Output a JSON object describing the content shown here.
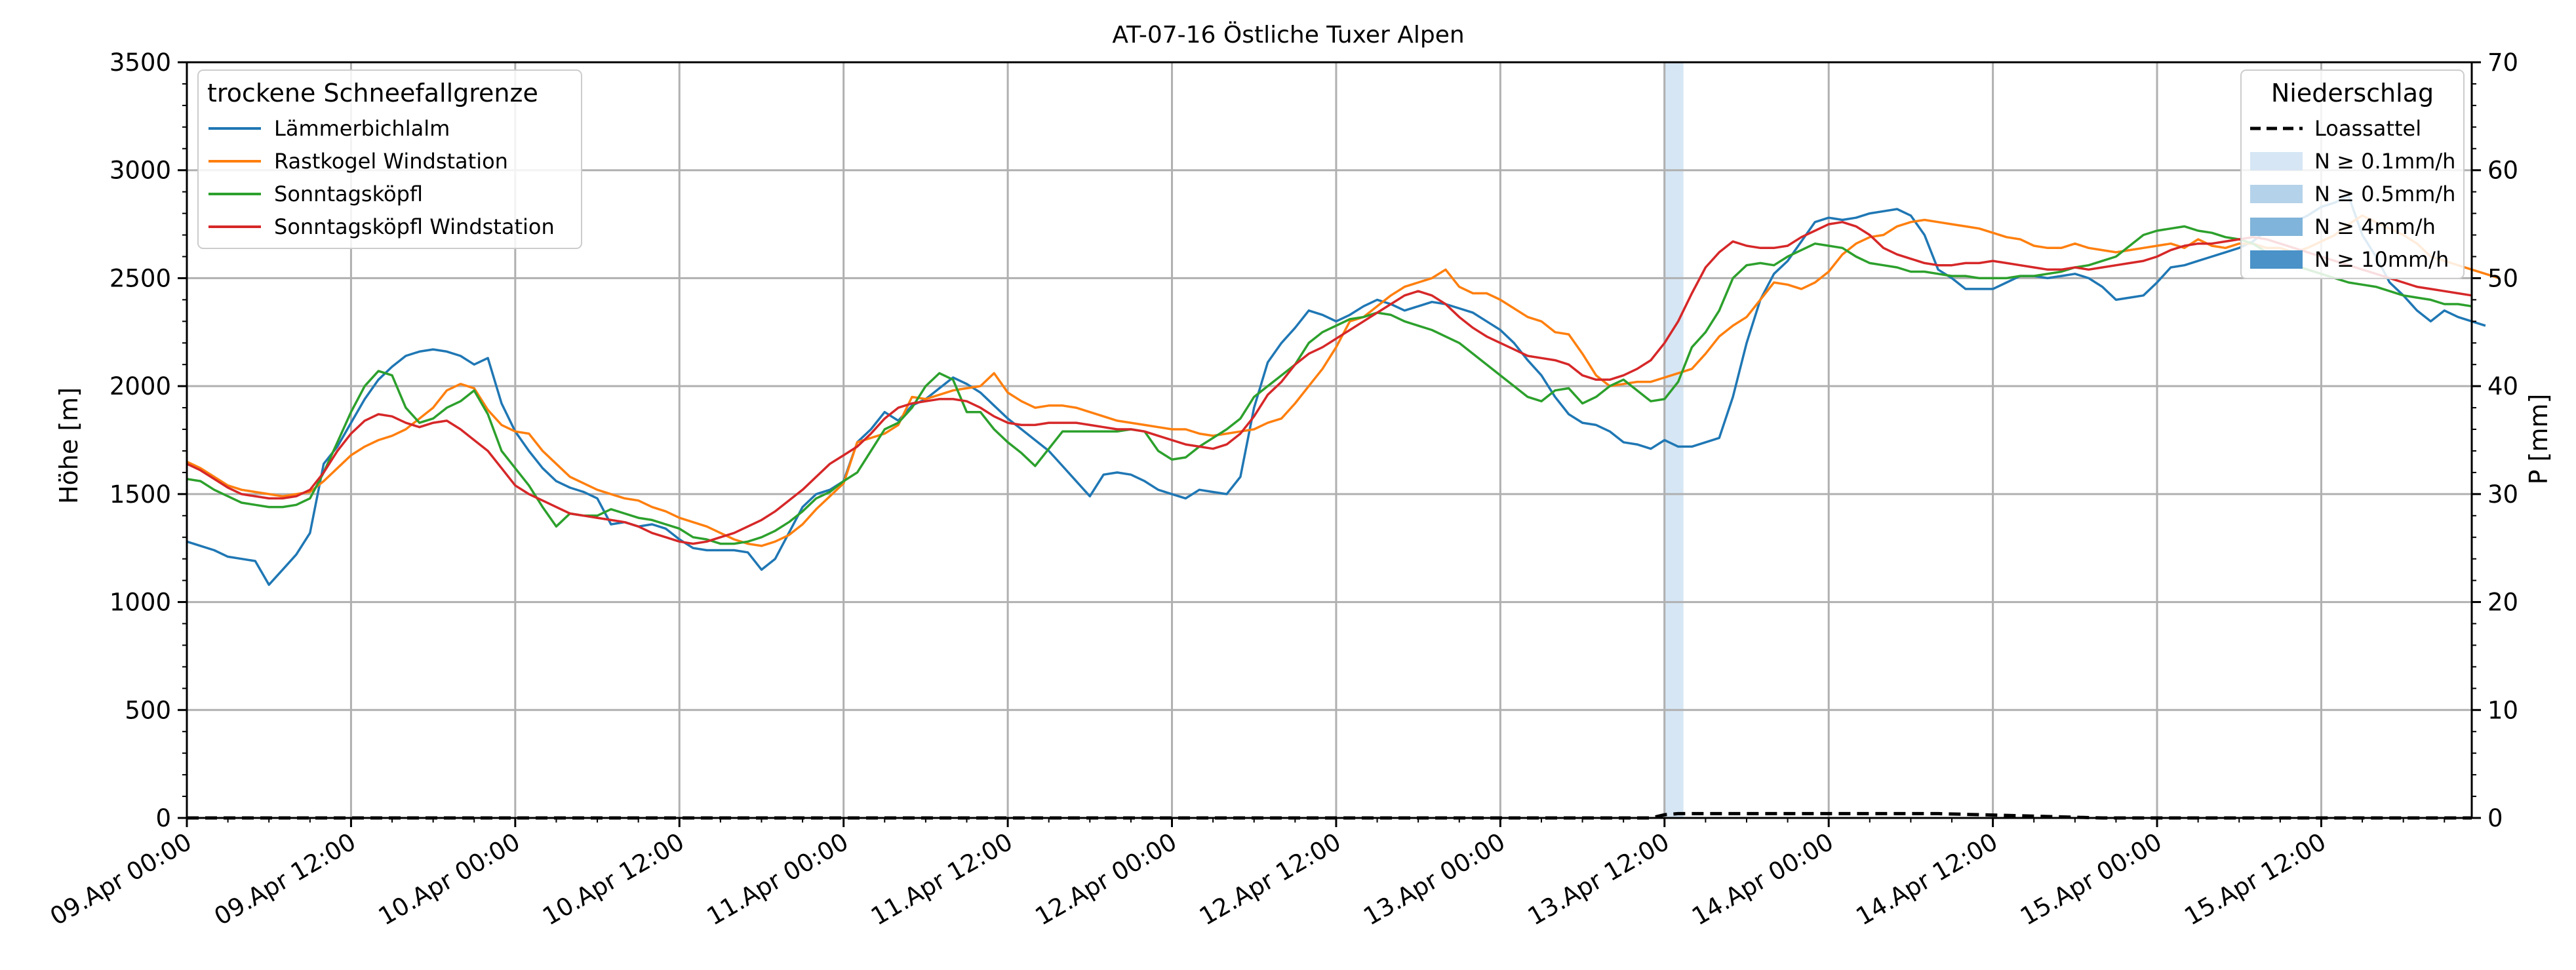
{
  "chart_data": {
    "type": "line",
    "title": "AT-07-16 Östliche Tuxer Alpen",
    "ylabel": "Höhe [m]",
    "y2label": "P [mm]",
    "xlabel": "",
    "x_start": "09.Apr 00:00",
    "x_step_hours": 1,
    "xlim_hours": [
      0,
      167
    ],
    "ylim": [
      0,
      3500
    ],
    "y2lim": [
      0,
      70
    ],
    "grid": true,
    "xticks": [
      "09.Apr 00:00",
      "09.Apr 12:00",
      "10.Apr 00:00",
      "10.Apr 12:00",
      "11.Apr 00:00",
      "11.Apr 12:00",
      "12.Apr 00:00",
      "12.Apr 12:00",
      "13.Apr 00:00",
      "13.Apr 12:00",
      "14.Apr 00:00",
      "14.Apr 12:00",
      "15.Apr 00:00",
      "15.Apr 12:00"
    ],
    "yticks": [
      "0",
      "500",
      "1000",
      "1500",
      "2000",
      "2500",
      "3000",
      "3500"
    ],
    "y2ticks": [
      "0",
      "10",
      "20",
      "30",
      "40",
      "50",
      "60",
      "70"
    ],
    "legend_left": {
      "title": "trockene Schneefallgrenze",
      "placement": "top-left",
      "entries": [
        "Lämmerbichlalm",
        "Rastkogel Windstation",
        "Sonntagsköpfl",
        "Sonntagsköpfl Windstation"
      ]
    },
    "legend_right": {
      "title": "Niederschlag",
      "placement": "top-right",
      "entries": [
        {
          "label": "Loassattel",
          "style": "dashed",
          "color": "#000000"
        },
        {
          "label": "N ≥ 0.1mm/h",
          "color": "#d6e6f4"
        },
        {
          "label": "N ≥ 0.5mm/h",
          "color": "#b4d2ea"
        },
        {
          "label": "N ≥ 4mm/h",
          "color": "#80b4da"
        },
        {
          "label": "N ≥ 10mm/h",
          "color": "#4a92c8"
        }
      ]
    },
    "series": [
      {
        "name": "Lämmerbichlalm",
        "color": "#1f77b4",
        "values": [
          1280,
          1260,
          1240,
          1210,
          1200,
          1190,
          1080,
          1150,
          1220,
          1320,
          1640,
          1720,
          1830,
          1940,
          2030,
          2090,
          2140,
          2160,
          2170,
          2160,
          2140,
          2100,
          2130,
          1920,
          1790,
          1700,
          1620,
          1560,
          1530,
          1510,
          1480,
          1360,
          1370,
          1350,
          1360,
          1340,
          1290,
          1250,
          1240,
          1240,
          1240,
          1230,
          1150,
          1200,
          1320,
          1440,
          1500,
          1520,
          1560,
          1740,
          1800,
          1880,
          1840,
          1910,
          1940,
          1990,
          2040,
          2010,
          1970,
          1910,
          1850,
          1800,
          1750,
          1700,
          1630,
          1560,
          1490,
          1590,
          1600,
          1590,
          1560,
          1520,
          1500,
          1480,
          1520,
          1510,
          1500,
          1580,
          1900,
          2110,
          2200,
          2270,
          2350,
          2330,
          2300,
          2330,
          2370,
          2400,
          2380,
          2350,
          2370,
          2390,
          2380,
          2360,
          2340,
          2300,
          2260,
          2200,
          2120,
          2050,
          1950,
          1870,
          1830,
          1820,
          1790,
          1740,
          1730,
          1710,
          1750,
          1720,
          1720,
          1740,
          1760,
          1950,
          2200,
          2400,
          2520,
          2580,
          2670,
          2760,
          2780,
          2770,
          2780,
          2800,
          2810,
          2820,
          2790,
          2700,
          2540,
          2500,
          2450,
          2450,
          2450,
          2480,
          2510,
          2510,
          2500,
          2510,
          2520,
          2500,
          2460,
          2400,
          2410,
          2420,
          2480,
          2550,
          2560,
          2580,
          2600,
          2620,
          2640,
          2670,
          2720,
          2740,
          2760,
          2790,
          2830,
          2850,
          2880,
          2700,
          2600,
          2480,
          2420,
          2350,
          2300,
          2350,
          2320,
          2300,
          2280
        ]
      },
      {
        "name": "Rastkogel Windstation",
        "color": "#ff7f0e",
        "values": [
          1650,
          1620,
          1580,
          1540,
          1520,
          1510,
          1500,
          1490,
          1500,
          1510,
          1560,
          1620,
          1680,
          1720,
          1750,
          1770,
          1800,
          1850,
          1900,
          1980,
          2010,
          1990,
          1890,
          1820,
          1790,
          1780,
          1700,
          1640,
          1580,
          1550,
          1520,
          1500,
          1480,
          1470,
          1440,
          1420,
          1390,
          1370,
          1350,
          1320,
          1290,
          1270,
          1260,
          1280,
          1310,
          1360,
          1430,
          1490,
          1550,
          1740,
          1760,
          1780,
          1820,
          1950,
          1940,
          1960,
          1980,
          1990,
          2000,
          2060,
          1970,
          1930,
          1900,
          1910,
          1910,
          1900,
          1880,
          1860,
          1840,
          1830,
          1820,
          1810,
          1800,
          1800,
          1780,
          1770,
          1780,
          1790,
          1800,
          1830,
          1850,
          1920,
          2000,
          2080,
          2180,
          2300,
          2320,
          2370,
          2420,
          2460,
          2480,
          2500,
          2540,
          2460,
          2430,
          2430,
          2400,
          2360,
          2320,
          2300,
          2250,
          2240,
          2150,
          2050,
          2000,
          2010,
          2020,
          2020,
          2040,
          2060,
          2080,
          2150,
          2230,
          2280,
          2320,
          2400,
          2480,
          2470,
          2450,
          2480,
          2530,
          2610,
          2660,
          2690,
          2700,
          2740,
          2760,
          2770,
          2760,
          2750,
          2740,
          2730,
          2710,
          2690,
          2680,
          2650,
          2640,
          2640,
          2660,
          2640,
          2630,
          2620,
          2630,
          2640,
          2650,
          2660,
          2640,
          2680,
          2650,
          2640,
          2660,
          2660,
          2640,
          2640,
          2620,
          2640,
          2670,
          2700,
          2750,
          2790,
          2760,
          2730,
          2700,
          2660,
          2600,
          2580,
          2560,
          2540,
          2520,
          2500
        ]
      },
      {
        "name": "Sonntagsköpfl",
        "color": "#2ca02c",
        "values": [
          1570,
          1560,
          1520,
          1490,
          1460,
          1450,
          1440,
          1440,
          1450,
          1480,
          1600,
          1740,
          1880,
          2000,
          2070,
          2050,
          1900,
          1830,
          1850,
          1900,
          1930,
          1980,
          1870,
          1700,
          1620,
          1540,
          1440,
          1350,
          1410,
          1400,
          1400,
          1430,
          1410,
          1390,
          1380,
          1360,
          1340,
          1300,
          1290,
          1270,
          1270,
          1280,
          1300,
          1330,
          1370,
          1420,
          1480,
          1510,
          1560,
          1600,
          1700,
          1800,
          1830,
          1900,
          2000,
          2060,
          2030,
          1880,
          1880,
          1800,
          1740,
          1690,
          1630,
          1710,
          1790,
          1790,
          1790,
          1790,
          1790,
          1800,
          1790,
          1700,
          1660,
          1670,
          1720,
          1760,
          1800,
          1850,
          1950,
          2000,
          2050,
          2100,
          2200,
          2250,
          2280,
          2310,
          2320,
          2340,
          2330,
          2300,
          2280,
          2260,
          2230,
          2200,
          2150,
          2100,
          2050,
          2000,
          1950,
          1930,
          1980,
          1990,
          1920,
          1950,
          2000,
          2030,
          1980,
          1930,
          1940,
          2020,
          2180,
          2250,
          2350,
          2500,
          2560,
          2570,
          2560,
          2600,
          2630,
          2660,
          2650,
          2640,
          2600,
          2570,
          2560,
          2550,
          2530,
          2530,
          2520,
          2510,
          2510,
          2500,
          2500,
          2500,
          2510,
          2510,
          2520,
          2530,
          2550,
          2560,
          2580,
          2600,
          2650,
          2700,
          2720,
          2730,
          2740,
          2720,
          2710,
          2690,
          2680,
          2660,
          2620,
          2590,
          2560,
          2540,
          2520,
          2500,
          2480,
          2470,
          2460,
          2440,
          2420,
          2410,
          2400,
          2380,
          2380,
          2370
        ]
      },
      {
        "name": "Sonntagsköpfl Windstation",
        "color": "#d62728",
        "values": [
          1640,
          1610,
          1570,
          1530,
          1500,
          1490,
          1480,
          1480,
          1490,
          1520,
          1600,
          1700,
          1780,
          1840,
          1870,
          1860,
          1830,
          1810,
          1830,
          1840,
          1800,
          1750,
          1700,
          1620,
          1540,
          1500,
          1470,
          1440,
          1410,
          1400,
          1390,
          1380,
          1370,
          1350,
          1320,
          1300,
          1280,
          1270,
          1280,
          1300,
          1320,
          1350,
          1380,
          1420,
          1470,
          1520,
          1580,
          1640,
          1680,
          1720,
          1780,
          1850,
          1900,
          1920,
          1930,
          1940,
          1940,
          1930,
          1900,
          1860,
          1830,
          1820,
          1820,
          1830,
          1830,
          1830,
          1820,
          1810,
          1800,
          1800,
          1790,
          1770,
          1750,
          1730,
          1720,
          1710,
          1730,
          1780,
          1860,
          1960,
          2020,
          2100,
          2150,
          2180,
          2220,
          2260,
          2300,
          2340,
          2380,
          2420,
          2440,
          2420,
          2380,
          2320,
          2270,
          2230,
          2200,
          2170,
          2140,
          2130,
          2120,
          2100,
          2050,
          2030,
          2030,
          2050,
          2080,
          2120,
          2200,
          2300,
          2430,
          2550,
          2620,
          2670,
          2650,
          2640,
          2640,
          2650,
          2690,
          2720,
          2750,
          2760,
          2740,
          2700,
          2640,
          2610,
          2590,
          2570,
          2560,
          2560,
          2570,
          2570,
          2580,
          2570,
          2560,
          2550,
          2540,
          2540,
          2550,
          2540,
          2550,
          2560,
          2570,
          2580,
          2600,
          2630,
          2650,
          2660,
          2660,
          2670,
          2680,
          2690,
          2680,
          2660,
          2640,
          2620,
          2600,
          2580,
          2560,
          2540,
          2520,
          2500,
          2480,
          2460,
          2450,
          2440,
          2430,
          2420
        ]
      }
    ],
    "precip_bars": [
      {
        "x_hour": 108,
        "class": "N ≥ 0.1mm/h",
        "color": "#d6e6f4"
      }
    ],
    "precip_line": {
      "name": "Loassattel",
      "x": [
        0,
        107,
        108,
        109,
        110,
        125,
        126,
        127,
        128,
        140,
        167
      ],
      "values": [
        0,
        0,
        0.3,
        0.4,
        0.4,
        0.4,
        0.4,
        0.4,
        0.4,
        0,
        0
      ]
    }
  }
}
